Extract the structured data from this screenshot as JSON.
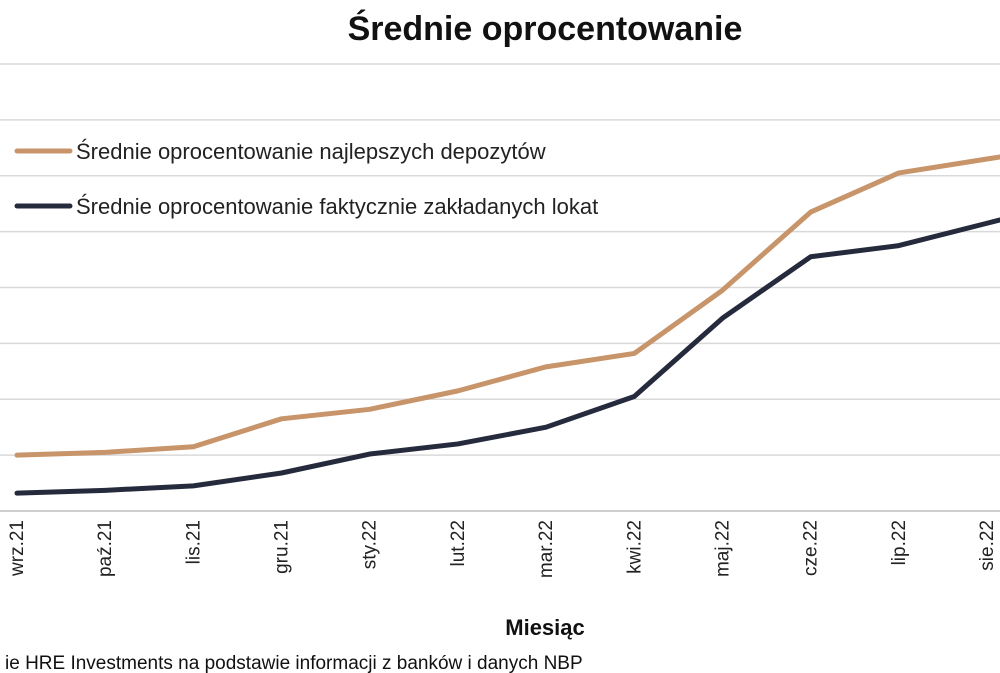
{
  "chart_data": {
    "type": "line",
    "title": "Średnie oprocentowanie",
    "xlabel": "Miesiąc",
    "ylabel": "",
    "categories": [
      "wrz.21",
      "paź.21",
      "lis.21",
      "gru.21",
      "sty.22",
      "lut.22",
      "mar.22",
      "kwi.22",
      "maj.22",
      "cze.22",
      "lip.22",
      "sie.22"
    ],
    "ylim": [
      0,
      8
    ],
    "grid": true,
    "legend_position": "top-left",
    "series": [
      {
        "name": "Średnie oprocentowanie najlepszych depozytów",
        "color": "#c8946a",
        "values": [
          1.0,
          1.05,
          1.15,
          1.65,
          1.82,
          2.15,
          2.58,
          2.82,
          3.95,
          5.35,
          6.05,
          6.3
        ]
      },
      {
        "name": "Średnie oprocentowanie faktycznie zakładanych lokat",
        "color": "#252a3d",
        "values": [
          0.32,
          0.37,
          0.45,
          0.68,
          1.02,
          1.2,
          1.5,
          2.05,
          3.45,
          4.55,
          4.75,
          5.15
        ]
      }
    ]
  },
  "source_note": "ie HRE Investments na podstawie informacji z banków i danych NBP"
}
